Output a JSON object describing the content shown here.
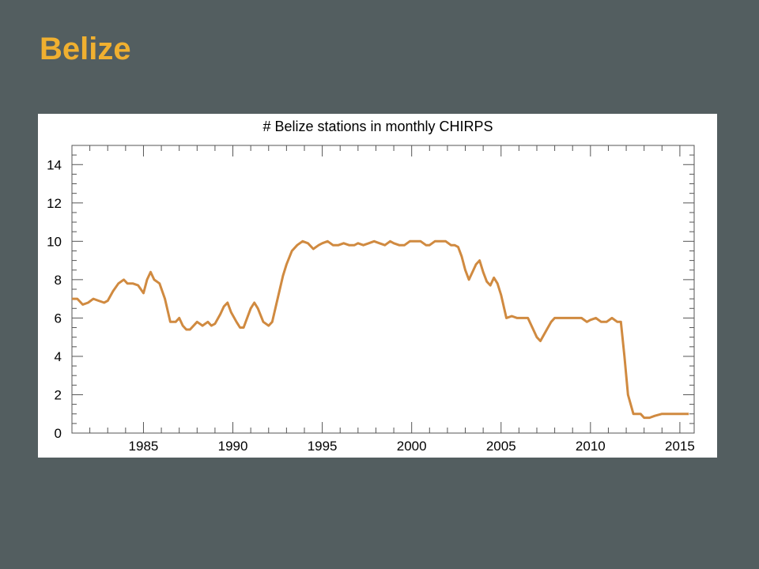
{
  "slide": {
    "title": "Belize"
  },
  "colors": {
    "background": "#535e60",
    "title": "#f0b030",
    "series": "#d08a40",
    "panel": "#ffffff"
  },
  "chart_data": {
    "type": "line",
    "title": "# Belize stations in monthly CHIRPS",
    "xlabel": "",
    "ylabel": "",
    "xlim": [
      1981,
      2015.8
    ],
    "ylim": [
      0,
      15
    ],
    "xticks": [
      1985,
      1990,
      1995,
      2000,
      2005,
      2010,
      2015
    ],
    "yticks": [
      0,
      2,
      4,
      6,
      8,
      10,
      12,
      14
    ],
    "grid": false,
    "series": [
      {
        "name": "",
        "x": [
          1981.0,
          1981.3,
          1981.6,
          1981.9,
          1982.2,
          1982.5,
          1982.8,
          1983.0,
          1983.3,
          1983.6,
          1983.9,
          1984.1,
          1984.4,
          1984.7,
          1985.0,
          1985.2,
          1985.4,
          1985.6,
          1985.9,
          1986.2,
          1986.5,
          1986.8,
          1987.0,
          1987.2,
          1987.4,
          1987.6,
          1988.0,
          1988.3,
          1988.6,
          1988.8,
          1989.0,
          1989.3,
          1989.5,
          1989.7,
          1989.9,
          1990.2,
          1990.4,
          1990.6,
          1990.8,
          1991.0,
          1991.2,
          1991.4,
          1991.7,
          1992.0,
          1992.2,
          1992.5,
          1992.8,
          1993.0,
          1993.3,
          1993.6,
          1993.9,
          1994.2,
          1994.5,
          1994.8,
          1995.0,
          1995.3,
          1995.6,
          1995.9,
          1996.2,
          1996.5,
          1996.8,
          1997.0,
          1997.3,
          1997.6,
          1997.9,
          1998.2,
          1998.5,
          1998.8,
          1999.0,
          1999.3,
          1999.6,
          1999.9,
          2000.2,
          2000.5,
          2000.8,
          2001.0,
          2001.3,
          2001.6,
          2001.9,
          2002.2,
          2002.4,
          2002.6,
          2002.8,
          2003.0,
          2003.2,
          2003.4,
          2003.6,
          2003.8,
          2004.0,
          2004.2,
          2004.4,
          2004.6,
          2004.8,
          2005.0,
          2005.3,
          2005.6,
          2005.9,
          2006.2,
          2006.5,
          2006.8,
          2007.0,
          2007.2,
          2007.5,
          2007.8,
          2008.0,
          2008.5,
          2009.0,
          2009.5,
          2009.8,
          2010.0,
          2010.3,
          2010.6,
          2010.9,
          2011.2,
          2011.5,
          2011.7,
          2011.9,
          2012.1,
          2012.4,
          2012.8,
          2013.0,
          2013.3,
          2013.6,
          2014.0,
          2014.5,
          2015.0,
          2015.5
        ],
        "y": [
          7.0,
          7.0,
          6.7,
          6.8,
          7.0,
          6.9,
          6.8,
          6.9,
          7.4,
          7.8,
          8.0,
          7.8,
          7.8,
          7.7,
          7.3,
          8.0,
          8.4,
          8.0,
          7.8,
          7.0,
          5.8,
          5.8,
          6.0,
          5.6,
          5.4,
          5.4,
          5.8,
          5.6,
          5.8,
          5.6,
          5.7,
          6.2,
          6.6,
          6.8,
          6.3,
          5.8,
          5.5,
          5.5,
          6.0,
          6.5,
          6.8,
          6.5,
          5.8,
          5.6,
          5.8,
          7.0,
          8.2,
          8.8,
          9.5,
          9.8,
          10.0,
          9.9,
          9.6,
          9.8,
          9.9,
          10.0,
          9.8,
          9.8,
          9.9,
          9.8,
          9.8,
          9.9,
          9.8,
          9.9,
          10.0,
          9.9,
          9.8,
          10.0,
          9.9,
          9.8,
          9.8,
          10.0,
          10.0,
          10.0,
          9.8,
          9.8,
          10.0,
          10.0,
          10.0,
          9.8,
          9.8,
          9.7,
          9.2,
          8.5,
          8.0,
          8.4,
          8.8,
          9.0,
          8.4,
          7.9,
          7.7,
          8.1,
          7.8,
          7.2,
          6.0,
          6.1,
          6.0,
          6.0,
          6.0,
          5.4,
          5.0,
          4.8,
          5.3,
          5.8,
          6.0,
          6.0,
          6.0,
          6.0,
          5.8,
          5.9,
          6.0,
          5.8,
          5.8,
          6.0,
          5.8,
          5.8,
          4.0,
          2.0,
          1.0,
          1.0,
          0.8,
          0.8,
          0.9,
          1.0,
          1.0,
          1.0,
          1.0
        ]
      }
    ]
  }
}
